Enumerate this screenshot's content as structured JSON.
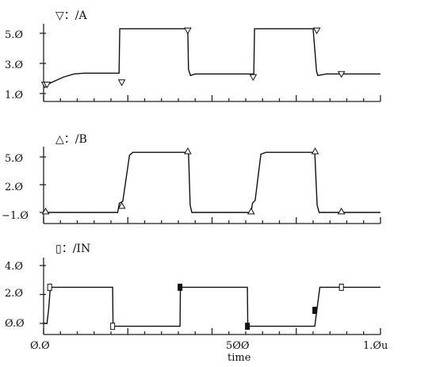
{
  "chart_data": [
    {
      "type": "line",
      "title": "▽：/A",
      "marker_symbol": "triangle-down",
      "y_tick_labels": [
        "5.Ø",
        "3.Ø",
        "1.Ø"
      ],
      "y_ticks": [
        5.0,
        3.0,
        1.0
      ],
      "ylim": [
        1.0,
        5.0
      ],
      "xlim": [
        0.0,
        1.0
      ],
      "x": [
        0.0,
        0.01,
        0.02,
        0.04,
        0.06,
        0.09,
        0.12,
        0.2,
        0.224,
        0.226,
        0.25,
        0.428,
        0.43,
        0.436,
        0.45,
        0.6,
        0.624,
        0.626,
        0.65,
        0.8,
        0.81,
        0.814,
        0.84,
        1.0
      ],
      "y": [
        1.6,
        1.55,
        1.7,
        1.9,
        2.1,
        2.3,
        2.35,
        2.35,
        2.35,
        5.3,
        5.3,
        5.3,
        2.6,
        2.2,
        2.3,
        2.3,
        2.3,
        5.3,
        5.3,
        5.3,
        2.5,
        2.2,
        2.3,
        2.3
      ],
      "markers": [
        {
          "x": 0.004,
          "y": 1.6
        },
        {
          "x": 0.01,
          "y": 1.6
        },
        {
          "x": 0.232,
          "y": 1.75
        },
        {
          "x": 0.428,
          "y": 5.2
        },
        {
          "x": 0.622,
          "y": 2.1
        },
        {
          "x": 0.811,
          "y": 5.2
        },
        {
          "x": 0.884,
          "y": 2.3
        }
      ]
    },
    {
      "type": "line",
      "title": "△：/B",
      "marker_symbol": "triangle-up",
      "y_tick_labels": [
        "5.Ø",
        "2.Ø",
        "−1.Ø"
      ],
      "y_ticks": [
        5.0,
        2.0,
        -1.0
      ],
      "ylim": [
        -1.0,
        5.0
      ],
      "xlim": [
        0.0,
        1.0
      ],
      "x": [
        0.0,
        0.01,
        0.22,
        0.225,
        0.235,
        0.255,
        0.265,
        0.43,
        0.435,
        0.44,
        0.616,
        0.62,
        0.628,
        0.645,
        0.66,
        0.805,
        0.812,
        0.818,
        1.0
      ],
      "y": [
        -1.0,
        -1.0,
        -1.0,
        0.0,
        0.2,
        5.2,
        5.5,
        5.5,
        -0.2,
        -1.0,
        -1.0,
        0.0,
        0.3,
        5.3,
        5.5,
        5.5,
        -0.2,
        -1.0,
        -1.0
      ],
      "markers": [
        {
          "x": 0.006,
          "y": -0.9
        },
        {
          "x": 0.232,
          "y": -0.3
        },
        {
          "x": 0.428,
          "y": 5.6
        },
        {
          "x": 0.616,
          "y": -0.9
        },
        {
          "x": 0.806,
          "y": 5.6
        },
        {
          "x": 0.884,
          "y": -0.9
        }
      ]
    },
    {
      "type": "line",
      "title": "▯：/IN",
      "marker_symbol": "rectangle",
      "y_tick_labels": [
        "4.Ø",
        "2.Ø",
        "Ø.Ø"
      ],
      "y_ticks": [
        4.0,
        2.0,
        0.0
      ],
      "ylim": [
        0.0,
        4.0
      ],
      "xlim": [
        0.0,
        1.0
      ],
      "x_tick_labels": [
        "Ø.Ø",
        "5ØØ",
        "1.Øu"
      ],
      "x_ticks": [
        0.0,
        0.5,
        1.0
      ],
      "xlabel": "time",
      "x": [
        0.0,
        0.01,
        0.015,
        0.02,
        0.205,
        0.206,
        0.405,
        0.406,
        0.605,
        0.606,
        0.805,
        0.82,
        1.0
      ],
      "y": [
        0.0,
        0.0,
        1.0,
        2.5,
        2.5,
        -0.2,
        -0.2,
        2.5,
        2.5,
        -0.2,
        -0.2,
        2.5,
        2.5
      ],
      "markers": [
        {
          "x": 0.018,
          "y": 2.5,
          "filled": false
        },
        {
          "x": 0.205,
          "y": -0.2,
          "filled": false
        },
        {
          "x": 0.405,
          "y": 2.5,
          "filled": true
        },
        {
          "x": 0.605,
          "y": -0.2,
          "filled": true
        },
        {
          "x": 0.805,
          "y": 0.9,
          "filled": true
        },
        {
          "x": 0.884,
          "y": 2.5,
          "filled": false
        }
      ]
    }
  ]
}
